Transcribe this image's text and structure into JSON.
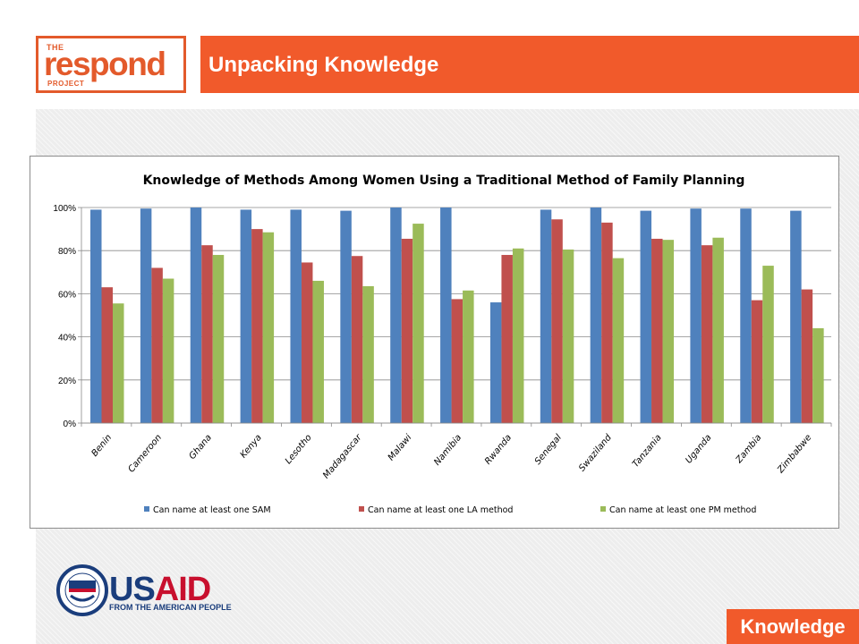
{
  "header": {
    "logo_the": "THE",
    "logo_main": "respond",
    "logo_project": "PROJECT",
    "title": "Unpacking Knowledge"
  },
  "footer": {
    "usaid_us": "US",
    "usaid_aid": "AID",
    "usaid_tagline": "FROM THE AMERICAN PEOPLE",
    "badge": "Knowledge"
  },
  "colors": {
    "accent": "#f15a2b",
    "series_sam": "#4f81bd",
    "series_la": "#c0504d",
    "series_pm": "#9bbb59"
  },
  "chart_data": {
    "type": "bar",
    "title": "Knowledge of Methods Among Women Using a Traditional Method of Family Planning",
    "xlabel": "",
    "ylabel": "",
    "ylim": [
      0,
      100
    ],
    "yticks": [
      "0%",
      "20%",
      "40%",
      "60%",
      "80%",
      "100%"
    ],
    "grid": true,
    "legend_position": "bottom",
    "categories": [
      "Benin",
      "Cameroon",
      "Ghana",
      "Kenya",
      "Lesotho",
      "Madagascar",
      "Malawi",
      "Namibia",
      "Rwanda",
      "Senegal",
      "Swaziland",
      "Tanzania",
      "Uganda",
      "Zambia",
      "Zimbabwe"
    ],
    "series": [
      {
        "name": "Can name at least one SAM",
        "color": "#4f81bd",
        "values": [
          99,
          99.5,
          100,
          99,
          99,
          98.5,
          100,
          100,
          56,
          99,
          100,
          98.5,
          99.5,
          99.5,
          98.5
        ]
      },
      {
        "name": "Can name at least one LA method",
        "color": "#c0504d",
        "values": [
          63,
          72,
          82.5,
          90,
          74.5,
          77.5,
          85.5,
          57.5,
          78,
          94.5,
          93,
          85.5,
          82.5,
          57,
          62
        ]
      },
      {
        "name": "Can name at least one PM method",
        "color": "#9bbb59",
        "values": [
          55.5,
          67,
          78,
          88.5,
          66,
          63.5,
          92.5,
          61.5,
          81,
          80.5,
          76.5,
          85,
          86,
          73,
          44
        ]
      }
    ]
  }
}
